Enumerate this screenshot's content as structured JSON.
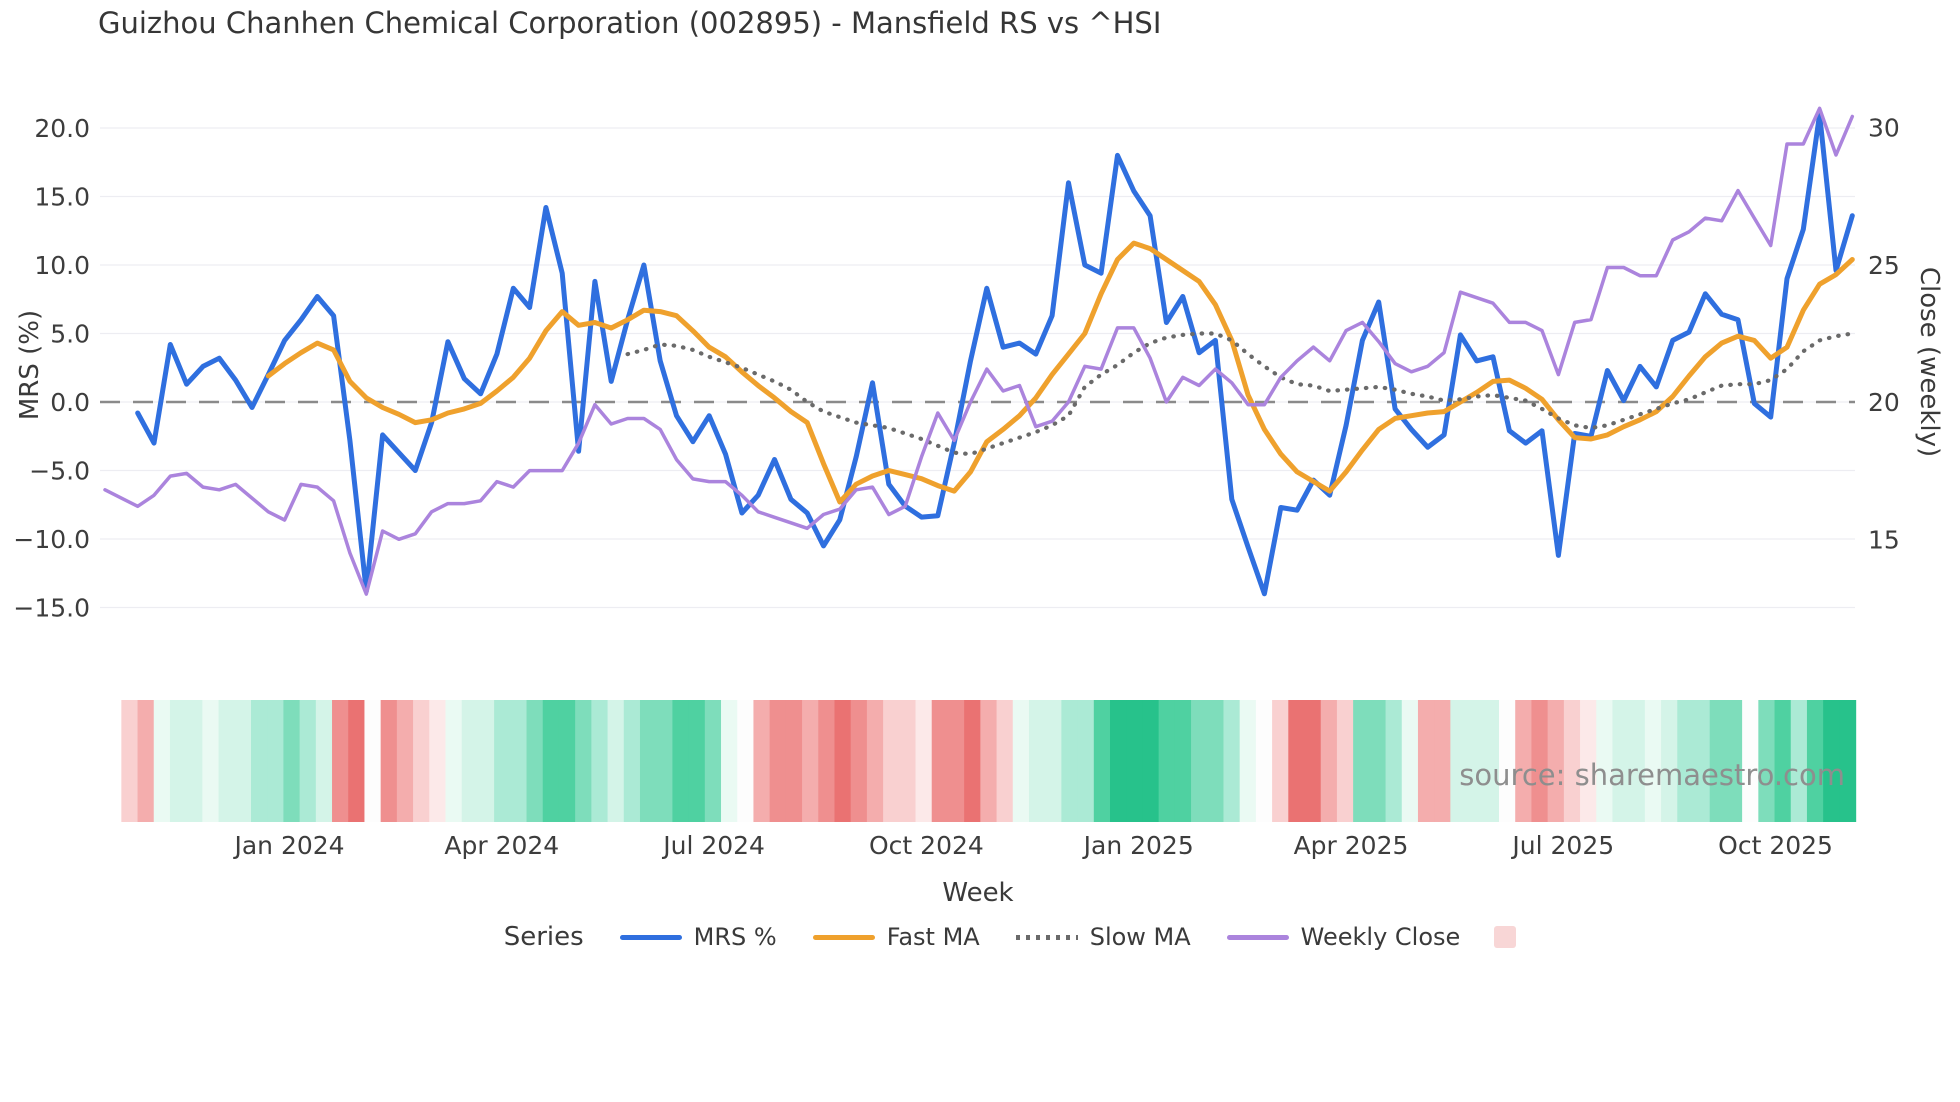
{
  "title": "Guizhou Chanhen Chemical Corporation (002895) - Mansfield RS vs ^HSI",
  "source": "source: sharemaestro.com",
  "legend": {
    "title": "Series",
    "items": [
      {
        "label": "MRS %",
        "color": "#2f6fdf",
        "style": "solid"
      },
      {
        "label": "Fast MA",
        "color": "#efa12d",
        "style": "solid"
      },
      {
        "label": "Slow MA",
        "color": "#6a6a6a",
        "style": "dotted"
      },
      {
        "label": "Weekly Close",
        "color": "#ab84dd",
        "style": "solid"
      }
    ],
    "heat_swatch_color": "#f8d6d6"
  },
  "chart_data": {
    "type": "line",
    "title": "Guizhou Chanhen Chemical Corporation (002895) - Mansfield RS vs ^HSI",
    "xlabel": "Week",
    "ylabel_left": "MRS (%)",
    "ylabel_right": "Close (weekly)",
    "grid": true,
    "legend_position": "bottom",
    "y_left_ticks": [
      {
        "v": 20,
        "label": "20.0"
      },
      {
        "v": 15,
        "label": "15.0"
      },
      {
        "v": 10,
        "label": "10.0"
      },
      {
        "v": 5,
        "label": "5.0"
      },
      {
        "v": 0,
        "label": "0.0"
      },
      {
        "v": -5,
        "label": "−5.0"
      },
      {
        "v": -10,
        "label": "−10.0"
      },
      {
        "v": -15,
        "label": "−15.0"
      }
    ],
    "y_right_ticks": [
      {
        "v": 30,
        "label": "30"
      },
      {
        "v": 25,
        "label": "25"
      },
      {
        "v": 20,
        "label": "20"
      },
      {
        "v": 15,
        "label": "15"
      }
    ],
    "y_left_range": [
      -17,
      22
    ],
    "y_right_range": [
      13.5,
      31.5
    ],
    "zero_line": 0,
    "x_ticks": [
      {
        "week": 11.3,
        "label": "Jan 2024"
      },
      {
        "week": 24.3,
        "label": "Apr 2024"
      },
      {
        "week": 37.3,
        "label": "Jul 2024"
      },
      {
        "week": 50.3,
        "label": "Oct 2024"
      },
      {
        "week": 63.3,
        "label": "Jan 2025"
      },
      {
        "week": 76.3,
        "label": "Apr 2025"
      },
      {
        "week": 89.3,
        "label": "Jul 2025"
      },
      {
        "week": 102.3,
        "label": "Oct 2025"
      }
    ],
    "series": [
      {
        "name": "MRS %",
        "color": "#2f6fdf",
        "style": "solid",
        "axis": "left",
        "width": 5,
        "values": [
          null,
          null,
          -0.8,
          -3.0,
          4.2,
          1.3,
          2.6,
          3.2,
          1.6,
          -0.4,
          2.0,
          4.5,
          6.0,
          7.7,
          6.3,
          -2.8,
          -13.8,
          -2.4,
          -3.7,
          -5.0,
          -1.5,
          4.4,
          1.7,
          0.6,
          3.5,
          8.3,
          6.9,
          14.2,
          9.4,
          -3.6,
          8.8,
          1.5,
          6.0,
          10.0,
          3.0,
          -1.0,
          -2.9,
          -1.0,
          -3.8,
          -8.1,
          -6.8,
          -4.2,
          -7.1,
          -8.1,
          -10.5,
          -8.6,
          -4.0,
          1.4,
          -6.0,
          -7.6,
          -8.4,
          -8.3,
          -3.0,
          3.0,
          8.3,
          4.0,
          4.3,
          3.5,
          6.3,
          16.0,
          10.0,
          9.4,
          18.0,
          15.4,
          13.6,
          5.8,
          7.7,
          3.6,
          4.5,
          -7.1,
          -10.6,
          -14.0,
          -7.7,
          -7.9,
          -5.7,
          -6.8,
          -1.7,
          4.5,
          7.3,
          -0.5,
          -2.0,
          -3.3,
          -2.4,
          4.9,
          3.0,
          3.3,
          -2.1,
          -3.0,
          -2.1,
          -11.2,
          -2.3,
          -2.5,
          2.3,
          0.1,
          2.6,
          1.1,
          4.5,
          5.1,
          7.9,
          6.4,
          6.0,
          -0.1,
          -1.1,
          9.0,
          12.6,
          21.0,
          9.6,
          13.6
        ]
      },
      {
        "name": "Fast MA",
        "color": "#efa12d",
        "style": "solid",
        "axis": "left",
        "width": 5,
        "values": [
          null,
          null,
          null,
          null,
          null,
          null,
          null,
          null,
          null,
          null,
          1.9,
          2.8,
          3.6,
          4.3,
          3.8,
          1.5,
          0.3,
          -0.4,
          -0.9,
          -1.5,
          -1.3,
          -0.8,
          -0.5,
          -0.1,
          0.8,
          1.8,
          3.2,
          5.2,
          6.6,
          5.6,
          5.8,
          5.4,
          6.0,
          6.7,
          6.6,
          6.3,
          5.2,
          4.0,
          3.3,
          2.2,
          1.2,
          0.3,
          -0.7,
          -1.5,
          -4.5,
          -7.3,
          -6.0,
          -5.4,
          -5.0,
          -5.3,
          -5.6,
          -6.1,
          -6.5,
          -5.1,
          -2.9,
          -2.0,
          -1.0,
          0.3,
          2.0,
          3.5,
          5.0,
          7.9,
          10.4,
          11.6,
          11.2,
          10.4,
          9.6,
          8.8,
          7.1,
          4.5,
          0.5,
          -2.0,
          -3.8,
          -5.1,
          -5.8,
          -6.5,
          -5.1,
          -3.5,
          -2.0,
          -1.2,
          -1.0,
          -0.8,
          -0.7,
          0.0,
          0.7,
          1.5,
          1.6,
          1.0,
          0.2,
          -1.3,
          -2.6,
          -2.7,
          -2.4,
          -1.8,
          -1.3,
          -0.7,
          0.4,
          1.9,
          3.3,
          4.3,
          4.8,
          4.5,
          3.2,
          4.0,
          6.7,
          8.6,
          9.3,
          10.4
        ]
      },
      {
        "name": "Slow MA",
        "color": "#6a6a6a",
        "style": "dotted",
        "axis": "left",
        "width": 4.2,
        "values": [
          null,
          null,
          null,
          null,
          null,
          null,
          null,
          null,
          null,
          null,
          null,
          null,
          null,
          null,
          null,
          null,
          null,
          null,
          null,
          null,
          null,
          null,
          null,
          null,
          null,
          null,
          null,
          null,
          null,
          null,
          null,
          null,
          3.5,
          3.8,
          4.2,
          4.1,
          3.8,
          3.3,
          2.9,
          2.5,
          2.0,
          1.5,
          0.9,
          0.0,
          -0.7,
          -1.1,
          -1.5,
          -1.7,
          -1.9,
          -2.3,
          -2.7,
          -3.2,
          -3.7,
          -3.8,
          -3.4,
          -3.0,
          -2.6,
          -2.2,
          -1.7,
          -1.0,
          1.1,
          2.0,
          2.7,
          3.6,
          4.3,
          4.7,
          4.9,
          5.0,
          5.0,
          4.5,
          3.5,
          2.6,
          1.8,
          1.3,
          1.2,
          0.8,
          0.9,
          1.0,
          1.1,
          0.9,
          0.6,
          0.4,
          0.1,
          0.2,
          0.4,
          0.5,
          0.3,
          0.1,
          -0.5,
          -1.2,
          -1.7,
          -1.9,
          -1.7,
          -1.3,
          -0.9,
          -0.5,
          -0.1,
          0.2,
          0.7,
          1.2,
          1.3,
          1.3,
          1.6,
          2.4,
          3.7,
          4.5,
          4.8,
          5.0
        ]
      },
      {
        "name": "Weekly Close",
        "color": "#ab84dd",
        "style": "solid",
        "axis": "right",
        "width": 3.5,
        "values": [
          16.8,
          16.5,
          16.2,
          16.6,
          17.3,
          17.4,
          16.9,
          16.8,
          17.0,
          16.5,
          16.0,
          15.7,
          17.0,
          16.9,
          16.4,
          14.5,
          13.0,
          15.3,
          15.0,
          15.2,
          16.0,
          16.3,
          16.3,
          16.4,
          17.1,
          16.9,
          17.5,
          17.5,
          17.5,
          18.5,
          19.9,
          19.2,
          19.4,
          19.4,
          19.0,
          17.9,
          17.2,
          17.1,
          17.1,
          16.6,
          16.0,
          15.8,
          15.6,
          15.4,
          15.9,
          16.1,
          16.8,
          16.9,
          15.9,
          16.2,
          18.0,
          19.6,
          18.6,
          20.0,
          21.2,
          20.4,
          20.6,
          19.1,
          19.3,
          20.0,
          21.3,
          21.2,
          22.7,
          22.7,
          21.6,
          20.0,
          20.9,
          20.6,
          21.2,
          20.7,
          19.9,
          19.9,
          20.9,
          21.5,
          22.0,
          21.5,
          22.6,
          22.9,
          22.2,
          21.4,
          21.1,
          21.3,
          21.8,
          24.0,
          23.8,
          23.6,
          22.9,
          22.9,
          22.6,
          21.0,
          22.9,
          23.0,
          24.9,
          24.9,
          24.6,
          24.6,
          25.9,
          26.2,
          26.7,
          26.6,
          27.7,
          26.7,
          25.7,
          29.4,
          29.4,
          30.7,
          29.0,
          30.4
        ]
      }
    ],
    "heatmap": {
      "start_week": 1,
      "colors": [
        "#f9d0d0",
        "#f4adad",
        "#eafaf3",
        "#d4f4e8",
        "#d4f4e8",
        "#eafaf3",
        "#d4f4e8",
        "#d4f4e8",
        "#abead5",
        "#abead5",
        "#7eddbb",
        "#abead5",
        "#d4f4e8",
        "#ef8f8f",
        "#ea7272",
        "#fdfdfd",
        "#ef8f8f",
        "#f4adad",
        "#f9d0d0",
        "#fce9e9",
        "#eafaf3",
        "#d4f4e8",
        "#d4f4e8",
        "#abead5",
        "#abead5",
        "#7eddbb",
        "#4fd1a1",
        "#4fd1a1",
        "#7eddbb",
        "#abead5",
        "#d4f4e8",
        "#abead5",
        "#7eddbb",
        "#7eddbb",
        "#4fd1a1",
        "#4fd1a1",
        "#7eddbb",
        "#eafaf3",
        "#fdfdfd",
        "#f4adad",
        "#ef8f8f",
        "#ef8f8f",
        "#f4adad",
        "#ef8f8f",
        "#ea7272",
        "#ef8f8f",
        "#f4adad",
        "#f9d0d0",
        "#f9d0d0",
        "#fce9e9",
        "#ef8f8f",
        "#ef8f8f",
        "#ea7272",
        "#f4adad",
        "#f9d0d0",
        "#eafaf3",
        "#d4f4e8",
        "#d4f4e8",
        "#abead5",
        "#abead5",
        "#4fd1a1",
        "#27c28b",
        "#27c28b",
        "#27c28b",
        "#4fd1a1",
        "#4fd1a1",
        "#7eddbb",
        "#7eddbb",
        "#abead5",
        "#eafaf3",
        "#fdfdfd",
        "#f9d0d0",
        "#ea7272",
        "#ea7272",
        "#f4adad",
        "#f9d0d0",
        "#7eddbb",
        "#7eddbb",
        "#abead5",
        "#eafaf3",
        "#f4adad",
        "#f4adad",
        "#d4f4e8",
        "#d4f4e8",
        "#d4f4e8",
        "#fdfdfd",
        "#f4adad",
        "#ef8f8f",
        "#f4adad",
        "#f9d0d0",
        "#fce9e9",
        "#eafaf3",
        "#d4f4e8",
        "#d4f4e8",
        "#eafaf3",
        "#d4f4e8",
        "#abead5",
        "#abead5",
        "#7eddbb",
        "#7eddbb",
        "#fdfdfd",
        "#7eddbb",
        "#4fd1a1",
        "#abead5",
        "#4fd1a1",
        "#27c28b",
        "#27c28b"
      ]
    }
  }
}
